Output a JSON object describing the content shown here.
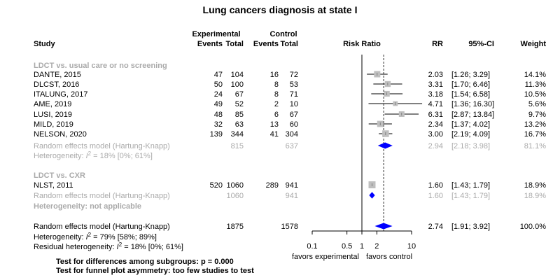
{
  "chart_data": {
    "type": "forest",
    "title": "Lung cancers diagnosis at state I",
    "headers": {
      "experimental": "Experimental",
      "control": "Control",
      "study": "Study",
      "events": "Events",
      "total": "Total",
      "risk_ratio": "Risk Ratio",
      "rr": "RR",
      "ci": "95%-CI",
      "weight": "Weight"
    },
    "axis": {
      "scale": "log",
      "ticks": [
        "0.1",
        "0.5",
        "1",
        "2",
        "10"
      ],
      "tick_values": [
        0.1,
        0.5,
        1,
        2,
        10
      ],
      "left_label": "favors experimental",
      "right_label": "favors control"
    },
    "subgroups": [
      {
        "label": "LDCT vs. usual care or no screening",
        "studies": [
          {
            "study": "DANTE, 2015",
            "e_events": "47",
            "e_total": "104",
            "c_events": "16",
            "c_total": "72",
            "rr": 2.03,
            "lower": 1.26,
            "upper": 3.29,
            "rr_text": "2.03",
            "ci_text": "[1.26; 3.29]",
            "weight_text": "14.1%",
            "weight": 14.1
          },
          {
            "study": "DLCST, 2016",
            "e_events": "50",
            "e_total": "100",
            "c_events": "8",
            "c_total": "53",
            "rr": 3.31,
            "lower": 1.7,
            "upper": 6.46,
            "rr_text": "3.31",
            "ci_text": "[1.70; 6.46]",
            "weight_text": "11.3%",
            "weight": 11.3
          },
          {
            "study": "ITALUNG, 2017",
            "e_events": "24",
            "e_total": "67",
            "c_events": "8",
            "c_total": "71",
            "rr": 3.18,
            "lower": 1.54,
            "upper": 6.58,
            "rr_text": "3.18",
            "ci_text": "[1.54; 6.58]",
            "weight_text": "10.5%",
            "weight": 10.5
          },
          {
            "study": "AME, 2019",
            "e_events": "49",
            "e_total": "52",
            "c_events": "2",
            "c_total": "10",
            "rr": 4.71,
            "lower": 1.36,
            "upper": 16.3,
            "rr_text": "4.71",
            "ci_text": "[1.36; 16.30]",
            "weight_text": "5.6%",
            "weight": 5.6
          },
          {
            "study": "LUSI, 2019",
            "e_events": "48",
            "e_total": "85",
            "c_events": "6",
            "c_total": "67",
            "rr": 6.31,
            "lower": 2.87,
            "upper": 13.84,
            "rr_text": "6.31",
            "ci_text": "[2.87; 13.84]",
            "weight_text": "9.7%",
            "weight": 9.7
          },
          {
            "study": "MILD, 2019",
            "e_events": "32",
            "e_total": "63",
            "c_events": "13",
            "c_total": "60",
            "rr": 2.34,
            "lower": 1.37,
            "upper": 4.02,
            "rr_text": "2.34",
            "ci_text": "[1.37; 4.02]",
            "weight_text": "13.2%",
            "weight": 13.2
          },
          {
            "study": "NELSON, 2020",
            "e_events": "139",
            "e_total": "344",
            "c_events": "41",
            "c_total": "304",
            "rr": 3.0,
            "lower": 2.19,
            "upper": 4.09,
            "rr_text": "3.00",
            "ci_text": "[2.19; 4.09]",
            "weight_text": "16.7%",
            "weight": 16.7
          }
        ],
        "summary": {
          "label": "Random effects model  (Hartung-Knapp)",
          "e_total": "815",
          "c_total": "637",
          "rr": 2.94,
          "lower": 2.18,
          "upper": 3.98,
          "rr_text": "2.94",
          "ci_text": "[2.18; 3.98]",
          "weight_text": "81.1%"
        },
        "heterogeneity": {
          "prefix": "Heterogeneity: ",
          "i2_symbol": "I",
          "sup": "2",
          "rest": " = 18% [0%; 61%]"
        }
      },
      {
        "label": "LDCT vs. CXR",
        "studies": [
          {
            "study": "NLST, 2011",
            "e_events": "520",
            "e_total": "1060",
            "c_events": "289",
            "c_total": "941",
            "rr": 1.6,
            "lower": 1.43,
            "upper": 1.79,
            "rr_text": "1.60",
            "ci_text": "[1.43; 1.79]",
            "weight_text": "18.9%",
            "weight": 18.9
          }
        ],
        "summary": {
          "label": "Random effects model  (Hartung-Knapp)",
          "e_total": "1060",
          "c_total": "941",
          "rr": 1.6,
          "lower": 1.43,
          "upper": 1.79,
          "rr_text": "1.60",
          "ci_text": "[1.43; 1.79]",
          "weight_text": "18.9%"
        },
        "heterogeneity_text": "Heterogeneity: not applicable"
      }
    ],
    "overall": {
      "label": "Random effects model  (Hartung-Knapp)",
      "e_total": "1875",
      "c_total": "1578",
      "rr": 2.74,
      "lower": 1.91,
      "upper": 3.92,
      "rr_text": "2.74",
      "ci_text": "[1.91; 3.92]",
      "weight_text": "100.0%",
      "heterogeneity": {
        "prefix": "Heterogeneity: ",
        "i2_symbol": "I",
        "sup": "2",
        "rest": " = 79% [58%; 89%]"
      },
      "residual": {
        "prefix": "Residual heterogeneity: ",
        "i2_symbol": "I",
        "sup": "2",
        "rest": " = 18% [0%; 61%]"
      }
    },
    "footer": [
      "Test for differences among subgroups: p = 0.000",
      "Test for funnel plot asymmetry: too few studies to test"
    ],
    "colors": {
      "text": "#000000",
      "grey_text": "#aaaaaa",
      "square": "#bfbfbf",
      "diamond": "#0000ff",
      "line": "#000000"
    }
  }
}
